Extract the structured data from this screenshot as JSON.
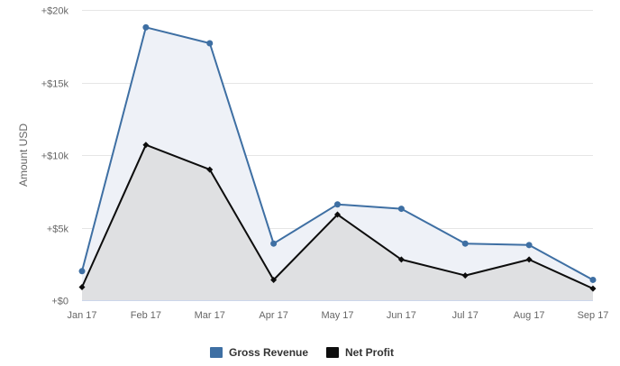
{
  "chart_data": {
    "type": "area",
    "categories": [
      "Jan 17",
      "Feb 17",
      "Mar 17",
      "Apr 17",
      "May 17",
      "Jun 17",
      "Jul 17",
      "Aug 17",
      "Sep 17"
    ],
    "series": [
      {
        "name": "Gross Revenue",
        "values": [
          2000,
          18800,
          17700,
          3900,
          6600,
          6300,
          3900,
          3800,
          1400
        ],
        "color": "#3e6fa3",
        "fill": "#eef1f7",
        "marker": "circle"
      },
      {
        "name": "Net Profit",
        "values": [
          900,
          10700,
          9000,
          1400,
          5900,
          2800,
          1700,
          2800,
          800
        ],
        "color": "#0d0d0d",
        "fill": "#dfe0e2",
        "marker": "diamond"
      }
    ],
    "ylabel": "Amount USD",
    "xlabel": "",
    "ylim": [
      0,
      20000
    ],
    "yticks": [
      {
        "value": 0,
        "label": "+$0"
      },
      {
        "value": 5000,
        "label": "+$5k"
      },
      {
        "value": 10000,
        "label": "+$10k"
      },
      {
        "value": 15000,
        "label": "+$15k"
      },
      {
        "value": 20000,
        "label": "+$20k"
      }
    ],
    "grid": true,
    "legend_position": "bottom-center"
  }
}
